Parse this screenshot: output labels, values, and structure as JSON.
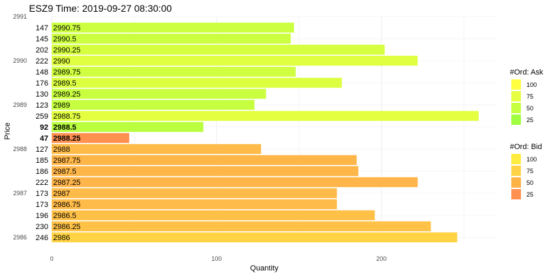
{
  "chart_data": {
    "type": "bar",
    "orientation": "horizontal",
    "title": "ESZ9  Time: 2019-09-27 08:30:00",
    "xlabel": "Quantity",
    "ylabel": "Price",
    "xlim": [
      0,
      270
    ],
    "x_ticks": [
      0,
      100,
      200
    ],
    "ylim": [
      2985.875,
      2991
    ],
    "y_ticks": [
      2986,
      2987,
      2988,
      2989,
      2990,
      2991
    ],
    "grid": true,
    "legend_placement": "right",
    "rows": [
      {
        "price": "2990.75",
        "qty": 147,
        "side": "ask",
        "orders": 60
      },
      {
        "price": "2990.5",
        "qty": 145,
        "side": "ask",
        "orders": 60
      },
      {
        "price": "2990.25",
        "qty": 202,
        "side": "ask",
        "orders": 68
      },
      {
        "price": "2990",
        "qty": 222,
        "side": "ask",
        "orders": 75
      },
      {
        "price": "2989.75",
        "qty": 148,
        "side": "ask",
        "orders": 62
      },
      {
        "price": "2989.5",
        "qty": 176,
        "side": "ask",
        "orders": 72
      },
      {
        "price": "2989.25",
        "qty": 130,
        "side": "ask",
        "orders": 58
      },
      {
        "price": "2989",
        "qty": 123,
        "side": "ask",
        "orders": 55
      },
      {
        "price": "2988.75",
        "qty": 259,
        "side": "ask",
        "orders": 78
      },
      {
        "price": "2988.5",
        "qty": 92,
        "side": "ask",
        "orders": 45,
        "bold": true
      },
      {
        "price": "2988.25",
        "qty": 47,
        "side": "bid",
        "orders": 25,
        "bold": true
      },
      {
        "price": "2988",
        "qty": 127,
        "side": "bid",
        "orders": 60
      },
      {
        "price": "2987.75",
        "qty": 185,
        "side": "bid",
        "orders": 56
      },
      {
        "price": "2987.5",
        "qty": 186,
        "side": "bid",
        "orders": 56
      },
      {
        "price": "2987.25",
        "qty": 222,
        "side": "bid",
        "orders": 55
      },
      {
        "price": "2987",
        "qty": 173,
        "side": "bid",
        "orders": 60
      },
      {
        "price": "2986.75",
        "qty": 173,
        "side": "bid",
        "orders": 60
      },
      {
        "price": "2986.5",
        "qty": 196,
        "side": "bid",
        "orders": 64
      },
      {
        "price": "2986.25",
        "qty": 230,
        "side": "bid",
        "orders": 66
      },
      {
        "price": "2986",
        "qty": 246,
        "side": "bid",
        "orders": 80
      }
    ],
    "legends": [
      {
        "title": "#Ord: Ask",
        "side": "ask",
        "labels": [
          "100",
          "75",
          "50",
          "25"
        ],
        "colors": [
          "#ffff40",
          "#e6ff40",
          "#c6ff40",
          "#a0ff40"
        ]
      },
      {
        "title": "#Ord: Bid",
        "side": "bid",
        "labels": [
          "100",
          "75",
          "50",
          "25"
        ],
        "colors": [
          "#ffec40",
          "#ffd347",
          "#ffb347",
          "#ff9050"
        ]
      }
    ],
    "colors": {
      "ask": [
        "#a0ff40",
        "#ffff40"
      ],
      "bid": [
        "#ff9050",
        "#ffec40"
      ],
      "grid": "#ebebeb"
    }
  }
}
